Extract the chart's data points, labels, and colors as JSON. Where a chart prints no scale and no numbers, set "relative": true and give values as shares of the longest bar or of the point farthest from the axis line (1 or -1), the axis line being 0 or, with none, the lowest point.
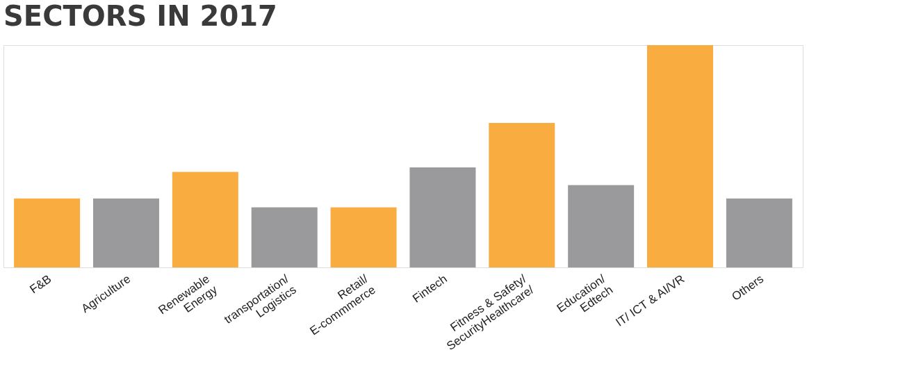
{
  "chart_data": {
    "type": "bar",
    "title": "SECTORS IN 2017",
    "relative": true,
    "categories": [
      "F&B",
      "Agriculture",
      "Renewable\nEnergy",
      "transportation/\nLogistics",
      "Retail/\nE-commmerce",
      "Fintech",
      "Fitness & Safety/\nSecurityHealthcare/",
      "Education/\nEdtech",
      "IT/  ICT & AI/VR",
      "Others"
    ],
    "values": [
      0.31,
      0.31,
      0.43,
      0.27,
      0.27,
      0.45,
      0.65,
      0.37,
      1,
      0.31
    ],
    "colors": [
      "#f9ac40",
      "#9a9a9c",
      "#f9ac40",
      "#9a9a9c",
      "#f9ac40",
      "#9a9a9c",
      "#f9ac40",
      "#9a9a9c",
      "#f9ac40",
      "#9a9a9c"
    ],
    "grid": false
  }
}
